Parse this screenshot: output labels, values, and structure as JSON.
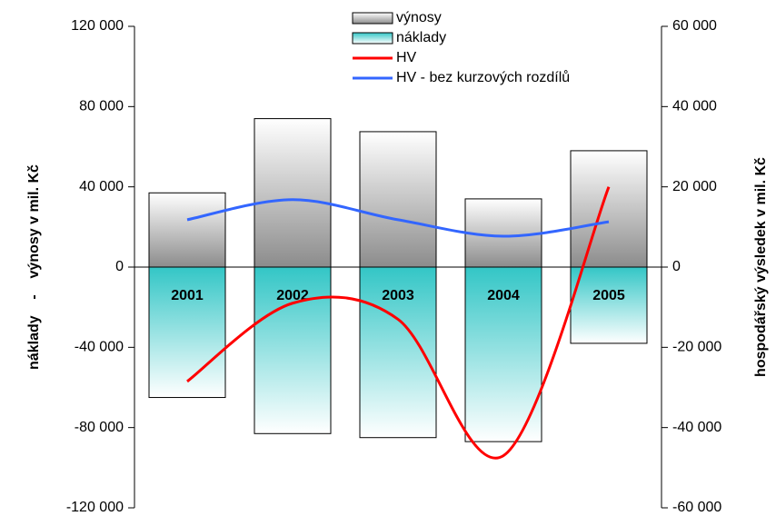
{
  "chart_data": {
    "type": "bar-line",
    "categories": [
      "2001",
      "2002",
      "2003",
      "2004",
      "2005"
    ],
    "series": [
      {
        "name": "výnosy",
        "type": "bar",
        "color": "#8c8c8c",
        "values": [
          37000,
          74000,
          67500,
          34000,
          58000
        ]
      },
      {
        "name": "náklady",
        "type": "bar",
        "color": "#33c6c6",
        "values": [
          -65000,
          -83000,
          -85000,
          -87000,
          -38000
        ]
      },
      {
        "name": "HV",
        "type": "line",
        "axis": "y2",
        "color": "#ff0000",
        "values": [
          -28500,
          -9000,
          -13000,
          -47000,
          20000
        ]
      },
      {
        "name": "HV - bez kurzových rozdílů",
        "type": "line",
        "axis": "y2",
        "color": "#3366ff",
        "values": [
          11800,
          16800,
          11800,
          7700,
          11300
        ]
      }
    ],
    "ylabel": "náklady    -    výnosy v mil. Kč",
    "y2label": "hospodářský výsledek v mil. Kč",
    "ylim": [
      -120000,
      120000
    ],
    "yticks": [
      {
        "value": -120000,
        "label": "-120 000"
      },
      {
        "value": -80000,
        "label": "-80 000"
      },
      {
        "value": -40000,
        "label": "-40 000"
      },
      0,
      {
        "value": 40000,
        "label": "40 000"
      },
      {
        "value": 80000,
        "label": "80 000"
      },
      {
        "value": 120000,
        "label": "120 000"
      }
    ],
    "y2lim": [
      -60000,
      60000
    ],
    "y2ticks": [
      {
        "value": -60000,
        "label": "-60 000"
      },
      {
        "value": -40000,
        "label": "-40 000"
      },
      {
        "value": -20000,
        "label": "-20 000"
      },
      0,
      {
        "value": 20000,
        "label": "20 000"
      },
      {
        "value": 40000,
        "label": "40 000"
      },
      {
        "value": 60000,
        "label": "60 000"
      }
    ],
    "legend": "top"
  }
}
